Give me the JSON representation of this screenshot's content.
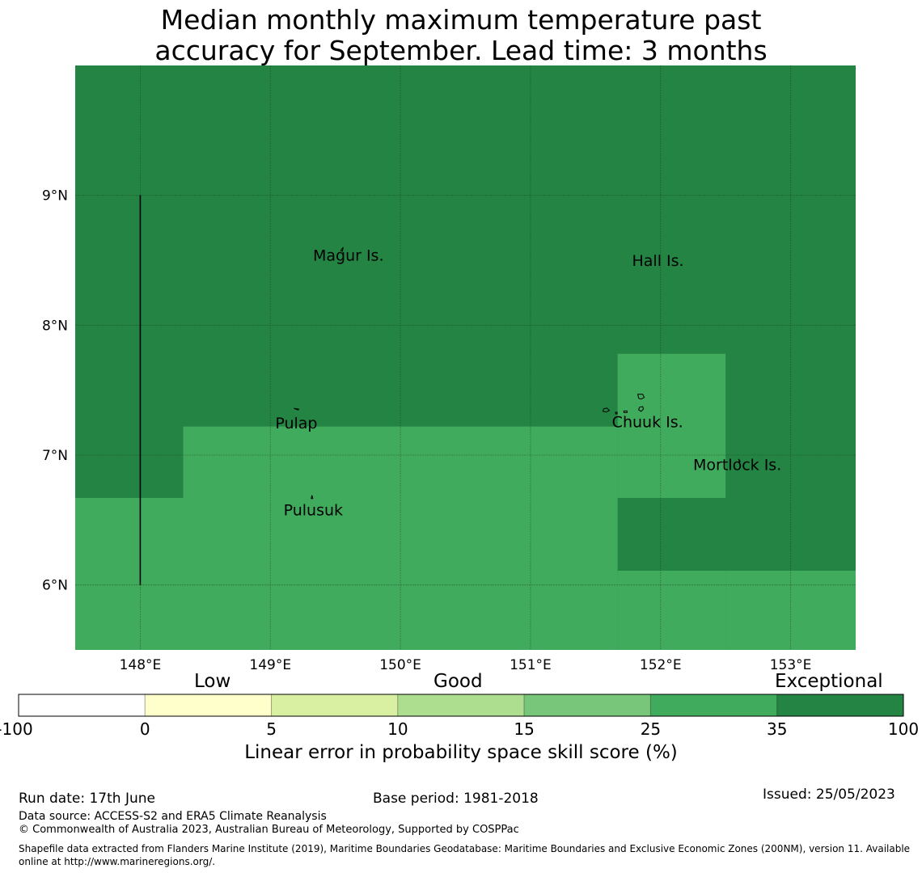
{
  "title": {
    "line1": "Median monthly maximum temperature past",
    "line2": "accuracy for September. Lead time: 3 months"
  },
  "map": {
    "lon_range": [
      147.5,
      153.5
    ],
    "lat_range": [
      5.5,
      10.0
    ],
    "lon_ticks": [
      {
        "value": 148,
        "label": "148°E"
      },
      {
        "value": 149,
        "label": "149°E"
      },
      {
        "value": 150,
        "label": "150°E"
      },
      {
        "value": 151,
        "label": "151°E"
      },
      {
        "value": 152,
        "label": "152°E"
      },
      {
        "value": 153,
        "label": "153°E"
      }
    ],
    "lat_ticks": [
      {
        "value": 9,
        "label": "9°N"
      },
      {
        "value": 8,
        "label": "8°N"
      },
      {
        "value": 7,
        "label": "7°N"
      },
      {
        "value": 6,
        "label": "6°N"
      }
    ],
    "grid": true,
    "background_color": "#238443",
    "skill_regions": [
      {
        "level": "35-100",
        "color": "#238443",
        "lon": [
          147.5,
          153.5
        ],
        "lat": [
          5.5,
          10.0
        ]
      },
      {
        "level": "25-35",
        "color": "#41ab5d",
        "lon": [
          148.33,
          151.67
        ],
        "lat": [
          5.5,
          7.22
        ]
      },
      {
        "level": "25-35",
        "color": "#41ab5d",
        "lon": [
          147.5,
          148.33
        ],
        "lat": [
          5.5,
          6.67
        ]
      },
      {
        "level": "25-35",
        "color": "#41ab5d",
        "lon": [
          151.67,
          152.5
        ],
        "lat": [
          5.5,
          7.78
        ]
      },
      {
        "level": "25-35",
        "color": "#41ab5d",
        "lon": [
          152.5,
          153.5
        ],
        "lat": [
          5.5,
          6.11
        ]
      },
      {
        "level": "25-35",
        "color": "#41ab5d",
        "lon": [
          152.5,
          152.5
        ],
        "lat": [
          6.67,
          7.78
        ]
      },
      {
        "level": "35-100",
        "color": "#238443",
        "lon": [
          151.67,
          153.5
        ],
        "lat": [
          6.11,
          6.67
        ]
      }
    ],
    "boundary_line": {
      "lon": 148.0,
      "lat": [
        6.0,
        9.0
      ]
    },
    "places": [
      {
        "name": "Magur Is.",
        "lon": 149.6,
        "lat": 8.53
      },
      {
        "name": "Hall Is.",
        "lon": 151.98,
        "lat": 8.49
      },
      {
        "name": "Pulap",
        "lon": 149.2,
        "lat": 7.24
      },
      {
        "name": "Chuuk Is.",
        "lon": 151.9,
        "lat": 7.25
      },
      {
        "name": "Mortlock Is.",
        "lon": 152.59,
        "lat": 6.92
      },
      {
        "name": "Pulusuk",
        "lon": 149.33,
        "lat": 6.57
      }
    ]
  },
  "colorbar": {
    "categories": [
      "Low",
      "Good",
      "Exceptional"
    ],
    "tick_labels": [
      "-100",
      "0",
      "5",
      "10",
      "15",
      "25",
      "35",
      "100"
    ],
    "colors": [
      "#ffffff",
      "#ffffcc",
      "#d9f0a3",
      "#addd8e",
      "#78c679",
      "#41ab5d",
      "#238443"
    ],
    "title": "Linear error in probability space skill score (%)"
  },
  "footer": {
    "run_date": "Run date: 17th June",
    "base_period": "Base period: 1981-2018",
    "issued": "Issued: 25/05/2023",
    "data_source": "Data source: ACCESS-S2 and ERA5 Climate Reanalysis",
    "copyright": "© Commonwealth of Australia 2023, Australian Bureau of Meteorology, Supported by COSPPac",
    "shapefile_line1": "Shapefile data extracted from Flanders Marine Institute (2019), Maritime Boundaries Geodatabase: Maritime Boundaries and Exclusive Economic Zones (200NM), version 11. Available",
    "shapefile_line2": "online at http://www.marineregions.org/."
  }
}
